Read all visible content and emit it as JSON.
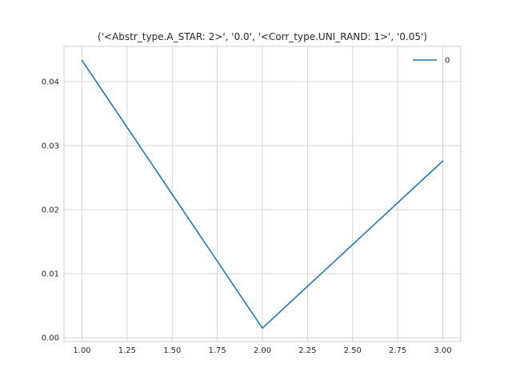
{
  "chart_data": {
    "type": "line",
    "title": "('<Abstr_type.A_STAR: 2>', '0.0', '<Corr_type.UNI_RAND: 1>', '0.05')",
    "xlabel": "",
    "ylabel": "",
    "xlim": [
      0.9,
      3.1
    ],
    "ylim": [
      -0.0006,
      0.0455
    ],
    "xticks": [
      1.0,
      1.25,
      1.5,
      1.75,
      2.0,
      2.25,
      2.5,
      2.75,
      3.0
    ],
    "xtick_labels": [
      "1.00",
      "1.25",
      "1.50",
      "1.75",
      "2.00",
      "2.25",
      "2.50",
      "2.75",
      "3.00"
    ],
    "yticks": [
      0.0,
      0.01,
      0.02,
      0.03,
      0.04
    ],
    "ytick_labels": [
      "0.00",
      "0.01",
      "0.02",
      "0.03",
      "0.04"
    ],
    "grid": true,
    "legend": "top-right",
    "series": [
      {
        "name": "0",
        "color": "#1f77b4",
        "x": [
          1.0,
          2.0,
          3.0
        ],
        "y": [
          0.0433,
          0.0015,
          0.0276
        ]
      }
    ]
  }
}
